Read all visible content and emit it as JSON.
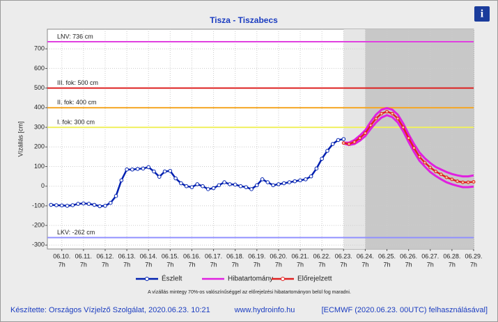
{
  "chart_data": {
    "type": "line",
    "title": "Tisza - Tiszabecs",
    "y_label": "Vízállás [cm]",
    "xlim": [
      "06.09. 15h",
      "06.29. 7h"
    ],
    "ylim": [
      -320,
      800
    ],
    "yticks": [
      -300,
      -200,
      -100,
      0,
      100,
      200,
      300,
      400,
      500,
      600,
      700
    ],
    "xticks": [
      {
        "day": "06.10.",
        "hour": "7h"
      },
      {
        "day": "06.11.",
        "hour": "7h"
      },
      {
        "day": "06.12.",
        "hour": "7h"
      },
      {
        "day": "06.13.",
        "hour": "7h"
      },
      {
        "day": "06.14.",
        "hour": "7h"
      },
      {
        "day": "06.15.",
        "hour": "7h"
      },
      {
        "day": "06.16.",
        "hour": "7h"
      },
      {
        "day": "06.17.",
        "hour": "7h"
      },
      {
        "day": "06.18.",
        "hour": "7h"
      },
      {
        "day": "06.19.",
        "hour": "7h"
      },
      {
        "day": "06.20.",
        "hour": "7h"
      },
      {
        "day": "06.21.",
        "hour": "7h"
      },
      {
        "day": "06.22.",
        "hour": "7h"
      },
      {
        "day": "06.23.",
        "hour": "7h"
      },
      {
        "day": "06.24.",
        "hour": "7h"
      },
      {
        "day": "06.25.",
        "hour": "7h"
      },
      {
        "day": "06.26.",
        "hour": "7h"
      },
      {
        "day": "06.27.",
        "hour": "7h"
      },
      {
        "day": "06.28.",
        "hour": "7h"
      },
      {
        "day": "06.29.",
        "hour": "7h"
      }
    ],
    "grid": true,
    "shading": [
      {
        "from": "06.23. 7h",
        "to": "06.24. 7h",
        "color": "#e6e6e6"
      },
      {
        "from": "06.24. 7h",
        "to": "06.29. 7h",
        "color": "#c8c8c8"
      }
    ],
    "levels": [
      {
        "label": "LNV: 736 cm",
        "value": 736,
        "color": "#e040e0"
      },
      {
        "label": "III. fok: 500 cm",
        "value": 500,
        "color": "#dd2020"
      },
      {
        "label": "II. fok: 400 cm",
        "value": 400,
        "color": "#f5a623"
      },
      {
        "label": "I. fok: 300 cm",
        "value": 300,
        "color": "#f0f060"
      },
      {
        "label": "LKV: -262 cm",
        "value": -262,
        "color": "#9090ff"
      }
    ],
    "series": [
      {
        "name": "Észlelt",
        "color": "#0020b0",
        "x": [
          "06.09. 19h",
          "06.10. 1h",
          "06.10. 7h",
          "06.10. 13h",
          "06.10. 19h",
          "06.11. 1h",
          "06.11. 7h",
          "06.11. 13h",
          "06.11. 19h",
          "06.12. 1h",
          "06.12. 7h",
          "06.12. 13h",
          "06.12. 19h",
          "06.13. 1h",
          "06.13. 7h",
          "06.13. 13h",
          "06.13. 19h",
          "06.14. 1h",
          "06.14. 7h",
          "06.14. 13h",
          "06.14. 19h",
          "06.15. 1h",
          "06.15. 7h",
          "06.15. 13h",
          "06.15. 19h",
          "06.16. 1h",
          "06.16. 7h",
          "06.16. 13h",
          "06.16. 19h",
          "06.17. 1h",
          "06.17. 7h",
          "06.17. 13h",
          "06.17. 19h",
          "06.18. 1h",
          "06.18. 7h",
          "06.18. 13h",
          "06.18. 19h",
          "06.19. 1h",
          "06.19. 7h",
          "06.19. 13h",
          "06.19. 19h",
          "06.20. 1h",
          "06.20. 7h",
          "06.20. 13h",
          "06.20. 19h",
          "06.21. 1h",
          "06.21. 7h",
          "06.21. 13h",
          "06.21. 19h",
          "06.22. 1h",
          "06.22. 7h",
          "06.22. 13h",
          "06.22. 19h",
          "06.23. 1h",
          "06.23. 7h"
        ],
        "values": [
          -95,
          -97,
          -98,
          -100,
          -97,
          -90,
          -88,
          -90,
          -95,
          -102,
          -100,
          -85,
          -50,
          30,
          85,
          85,
          88,
          90,
          97,
          75,
          48,
          75,
          78,
          40,
          15,
          0,
          -5,
          10,
          0,
          -15,
          -10,
          5,
          20,
          10,
          8,
          0,
          -5,
          -15,
          5,
          35,
          20,
          5,
          10,
          15,
          20,
          25,
          30,
          35,
          50,
          90,
          140,
          180,
          215,
          235,
          240
        ]
      },
      {
        "name": "Hibatartomány",
        "color": "#e020e0",
        "x": [
          "06.23. 7h",
          "06.23. 13h",
          "06.23. 19h",
          "06.24. 1h",
          "06.24. 7h",
          "06.24. 13h",
          "06.24. 19h",
          "06.25. 1h",
          "06.25. 7h",
          "06.25. 13h",
          "06.25. 19h",
          "06.26. 1h",
          "06.26. 7h",
          "06.26. 13h",
          "06.26. 19h",
          "06.27. 1h",
          "06.27. 7h",
          "06.27. 13h",
          "06.27. 19h",
          "06.28. 1h",
          "06.28. 7h",
          "06.28. 13h",
          "06.28. 19h",
          "06.29. 1h",
          "06.29. 7h"
        ],
        "low": [
          218,
          210,
          215,
          232,
          255,
          292,
          325,
          350,
          362,
          352,
          325,
          280,
          225,
          175,
          130,
          100,
          72,
          52,
          35,
          20,
          10,
          2,
          -5,
          -5,
          -2
        ],
        "high": [
          222,
          222,
          235,
          258,
          285,
          328,
          365,
          390,
          398,
          390,
          365,
          320,
          265,
          215,
          172,
          142,
          118,
          98,
          85,
          72,
          62,
          55,
          50,
          50,
          55
        ]
      },
      {
        "name": "Előrejelzett",
        "color": "#e02020",
        "x": [
          "06.23. 7h",
          "06.23. 13h",
          "06.23. 19h",
          "06.24. 1h",
          "06.24. 7h",
          "06.24. 13h",
          "06.24. 19h",
          "06.25. 1h",
          "06.25. 7h",
          "06.25. 13h",
          "06.25. 19h",
          "06.26. 1h",
          "06.26. 7h",
          "06.26. 13h",
          "06.26. 19h",
          "06.27. 1h",
          "06.27. 7h",
          "06.27. 13h",
          "06.27. 19h",
          "06.28. 1h",
          "06.28. 7h",
          "06.28. 13h",
          "06.28. 19h",
          "06.29. 1h",
          "06.29. 7h"
        ],
        "values": [
          220,
          215,
          225,
          245,
          270,
          310,
          345,
          370,
          380,
          370,
          345,
          300,
          245,
          195,
          150,
          120,
          95,
          75,
          60,
          45,
          35,
          25,
          20,
          20,
          22
        ]
      }
    ],
    "note": "A vízállás mintegy 70%-os valószínűséggel az előrejelzési hibatartományon belül fog maradni.",
    "footer": {
      "author": "Készítette: Országos Vízjelző Szolgálat, 2020.06.23. 10:21",
      "url": "www.hydroinfo.hu",
      "source": "[ECMWF (2020.06.23. 00UTC) felhasználásával]"
    },
    "info_icon": "i"
  }
}
